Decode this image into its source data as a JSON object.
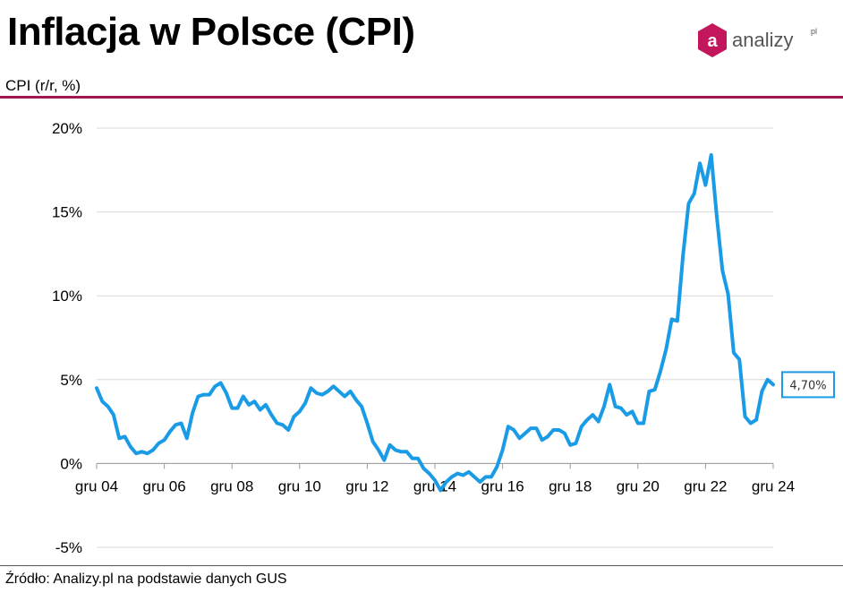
{
  "header": {
    "title": "Inflacja w Polsce (CPI)",
    "unit_label": "CPI (r/r, %)",
    "logo_text": "analizy",
    "logo_suffix": "pl",
    "logo_letter": "a"
  },
  "footer": {
    "source": "Źródło: Analizy.pl na podstawie danych GUS"
  },
  "colors": {
    "accent": "#a01650",
    "line": "#1a9be6",
    "grid": "#d9d9d9",
    "logo": "#c2185b"
  },
  "chart_data": {
    "type": "line",
    "title": "Inflacja w Polsce (CPI)",
    "ylabel": "CPI (r/r, %)",
    "xlabel": "",
    "ylim": [
      -5,
      20
    ],
    "yticks": [
      20,
      15,
      10,
      5,
      0,
      -5
    ],
    "ytick_labels": [
      "20%",
      "15%",
      "10%",
      "5%",
      "0%",
      "-5%"
    ],
    "xtick_labels": [
      "gru 04",
      "gru 06",
      "gru 08",
      "gru 10",
      "gru 12",
      "gru 14",
      "gru 16",
      "gru 18",
      "gru 20",
      "gru 22",
      "gru 24"
    ],
    "xlim": [
      "2004-12",
      "2024-12"
    ],
    "grid": true,
    "last_value_label": "4,70%",
    "series": [
      {
        "color": "#1a9be6",
        "points": [
          [
            "2004-12",
            4.5
          ],
          [
            "2005-02",
            3.7
          ],
          [
            "2005-04",
            3.4
          ],
          [
            "2005-06",
            2.9
          ],
          [
            "2005-08",
            1.5
          ],
          [
            "2005-10",
            1.6
          ],
          [
            "2005-12",
            1.0
          ],
          [
            "2006-02",
            0.6
          ],
          [
            "2006-04",
            0.7
          ],
          [
            "2006-06",
            0.6
          ],
          [
            "2006-08",
            0.8
          ],
          [
            "2006-10",
            1.2
          ],
          [
            "2006-12",
            1.4
          ],
          [
            "2007-02",
            1.9
          ],
          [
            "2007-04",
            2.3
          ],
          [
            "2007-06",
            2.4
          ],
          [
            "2007-08",
            1.5
          ],
          [
            "2007-10",
            3.0
          ],
          [
            "2007-12",
            4.0
          ],
          [
            "2008-02",
            4.1
          ],
          [
            "2008-04",
            4.1
          ],
          [
            "2008-06",
            4.6
          ],
          [
            "2008-08",
            4.8
          ],
          [
            "2008-10",
            4.2
          ],
          [
            "2008-12",
            3.3
          ],
          [
            "2009-02",
            3.3
          ],
          [
            "2009-04",
            4.0
          ],
          [
            "2009-06",
            3.5
          ],
          [
            "2009-08",
            3.7
          ],
          [
            "2009-10",
            3.2
          ],
          [
            "2009-12",
            3.5
          ],
          [
            "2010-02",
            2.9
          ],
          [
            "2010-04",
            2.4
          ],
          [
            "2010-06",
            2.3
          ],
          [
            "2010-08",
            2.0
          ],
          [
            "2010-10",
            2.8
          ],
          [
            "2010-12",
            3.1
          ],
          [
            "2011-02",
            3.6
          ],
          [
            "2011-04",
            4.5
          ],
          [
            "2011-06",
            4.2
          ],
          [
            "2011-08",
            4.1
          ],
          [
            "2011-10",
            4.3
          ],
          [
            "2011-12",
            4.6
          ],
          [
            "2012-02",
            4.3
          ],
          [
            "2012-04",
            4.0
          ],
          [
            "2012-06",
            4.3
          ],
          [
            "2012-08",
            3.8
          ],
          [
            "2012-10",
            3.4
          ],
          [
            "2012-12",
            2.4
          ],
          [
            "2013-02",
            1.3
          ],
          [
            "2013-04",
            0.8
          ],
          [
            "2013-06",
            0.2
          ],
          [
            "2013-08",
            1.1
          ],
          [
            "2013-10",
            0.8
          ],
          [
            "2013-12",
            0.7
          ],
          [
            "2014-02",
            0.7
          ],
          [
            "2014-04",
            0.3
          ],
          [
            "2014-06",
            0.3
          ],
          [
            "2014-08",
            -0.3
          ],
          [
            "2014-10",
            -0.6
          ],
          [
            "2014-12",
            -1.0
          ],
          [
            "2015-02",
            -1.6
          ],
          [
            "2015-04",
            -1.1
          ],
          [
            "2015-06",
            -0.8
          ],
          [
            "2015-08",
            -0.6
          ],
          [
            "2015-10",
            -0.7
          ],
          [
            "2015-12",
            -0.5
          ],
          [
            "2016-02",
            -0.8
          ],
          [
            "2016-04",
            -1.1
          ],
          [
            "2016-06",
            -0.8
          ],
          [
            "2016-08",
            -0.8
          ],
          [
            "2016-10",
            -0.2
          ],
          [
            "2016-12",
            0.8
          ],
          [
            "2017-02",
            2.2
          ],
          [
            "2017-04",
            2.0
          ],
          [
            "2017-06",
            1.5
          ],
          [
            "2017-08",
            1.8
          ],
          [
            "2017-10",
            2.1
          ],
          [
            "2017-12",
            2.1
          ],
          [
            "2018-02",
            1.4
          ],
          [
            "2018-04",
            1.6
          ],
          [
            "2018-06",
            2.0
          ],
          [
            "2018-08",
            2.0
          ],
          [
            "2018-10",
            1.8
          ],
          [
            "2018-12",
            1.1
          ],
          [
            "2019-02",
            1.2
          ],
          [
            "2019-04",
            2.2
          ],
          [
            "2019-06",
            2.6
          ],
          [
            "2019-08",
            2.9
          ],
          [
            "2019-10",
            2.5
          ],
          [
            "2019-12",
            3.4
          ],
          [
            "2020-02",
            4.7
          ],
          [
            "2020-04",
            3.4
          ],
          [
            "2020-06",
            3.3
          ],
          [
            "2020-08",
            2.9
          ],
          [
            "2020-10",
            3.1
          ],
          [
            "2020-12",
            2.4
          ],
          [
            "2021-02",
            2.4
          ],
          [
            "2021-04",
            4.3
          ],
          [
            "2021-06",
            4.4
          ],
          [
            "2021-08",
            5.5
          ],
          [
            "2021-10",
            6.8
          ],
          [
            "2021-12",
            8.6
          ],
          [
            "2022-02",
            8.5
          ],
          [
            "2022-04",
            12.4
          ],
          [
            "2022-06",
            15.5
          ],
          [
            "2022-08",
            16.1
          ],
          [
            "2022-10",
            17.9
          ],
          [
            "2022-12",
            16.6
          ],
          [
            "2023-02",
            18.4
          ],
          [
            "2023-04",
            14.7
          ],
          [
            "2023-06",
            11.5
          ],
          [
            "2023-08",
            10.1
          ],
          [
            "2023-10",
            6.6
          ],
          [
            "2023-12",
            6.2
          ],
          [
            "2024-02",
            2.8
          ],
          [
            "2024-04",
            2.4
          ],
          [
            "2024-06",
            2.6
          ],
          [
            "2024-08",
            4.3
          ],
          [
            "2024-10",
            5.0
          ],
          [
            "2024-12",
            4.7
          ]
        ]
      }
    ]
  }
}
